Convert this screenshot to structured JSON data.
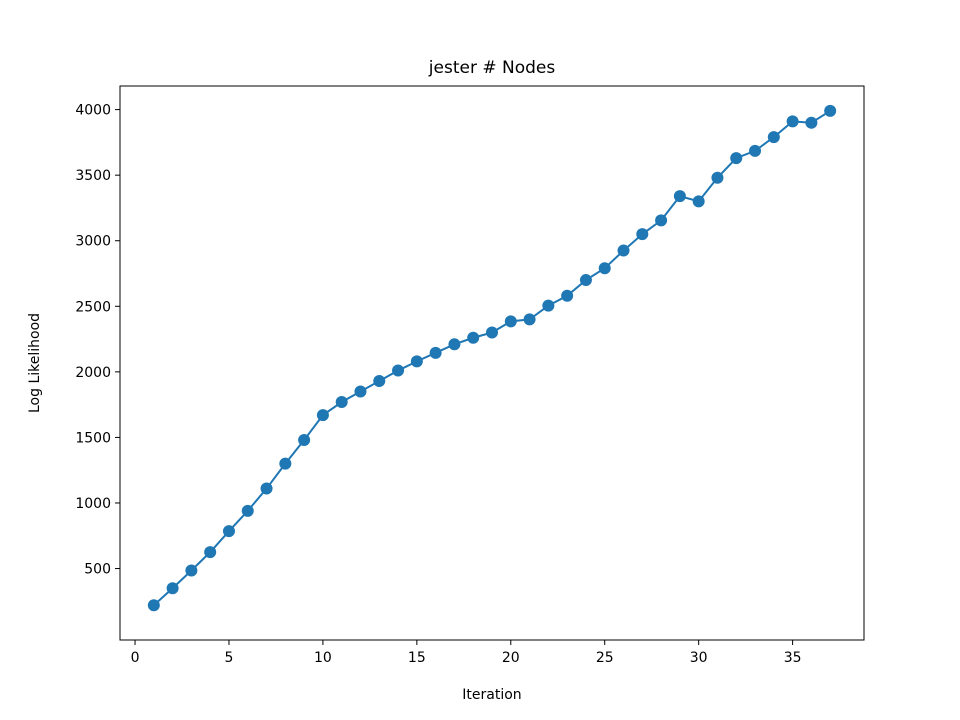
{
  "chart_data": {
    "type": "line",
    "title": "jester # Nodes",
    "xlabel": "Iteration",
    "ylabel": "Log Likelihood",
    "xlim": [
      -0.8,
      38.8
    ],
    "ylim": [
      -45,
      4180
    ],
    "xticks": [
      0,
      5,
      10,
      15,
      20,
      25,
      30,
      35
    ],
    "yticks": [
      500,
      1000,
      1500,
      2000,
      2500,
      3000,
      3500,
      4000
    ],
    "grid": false,
    "legend": "none",
    "series": [
      {
        "color": "#1f77b4",
        "marker": "circle",
        "x": [
          1,
          2,
          3,
          4,
          5,
          6,
          7,
          8,
          9,
          10,
          11,
          12,
          13,
          14,
          15,
          16,
          17,
          18,
          19,
          20,
          21,
          22,
          23,
          24,
          25,
          26,
          27,
          28,
          29,
          30,
          31,
          32,
          33,
          34,
          35,
          36,
          37
        ],
        "y": [
          220,
          350,
          485,
          625,
          785,
          940,
          1110,
          1300,
          1480,
          1670,
          1770,
          1850,
          1930,
          2010,
          2080,
          2145,
          2210,
          2260,
          2300,
          2385,
          2400,
          2505,
          2580,
          2700,
          2790,
          2925,
          3050,
          3155,
          3340,
          3300,
          3480,
          3630,
          3685,
          3790,
          3910,
          3900,
          3990
        ]
      }
    ]
  }
}
